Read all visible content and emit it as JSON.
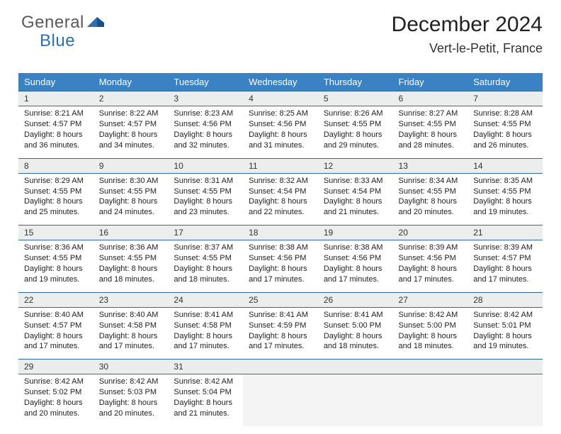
{
  "brand": {
    "part1": "General",
    "part2": "Blue"
  },
  "title": "December 2024",
  "location": "Vert-le-Petit, France",
  "colors": {
    "header_bg": "#3b82c4",
    "row_border": "#2f6aa5",
    "daynum_bg": "#eceded",
    "empty_bg": "#f4f4f4",
    "brand_blue": "#2e6fb0",
    "text": "#222222"
  },
  "typography": {
    "title_fontsize": 30,
    "location_fontsize": 18,
    "header_fontsize": 13,
    "cell_fontsize": 11
  },
  "day_headers": [
    "Sunday",
    "Monday",
    "Tuesday",
    "Wednesday",
    "Thursday",
    "Friday",
    "Saturday"
  ],
  "weeks": [
    [
      {
        "n": "1",
        "sunrise": "8:21 AM",
        "sunset": "4:57 PM",
        "dl": "8 hours and 36 minutes."
      },
      {
        "n": "2",
        "sunrise": "8:22 AM",
        "sunset": "4:57 PM",
        "dl": "8 hours and 34 minutes."
      },
      {
        "n": "3",
        "sunrise": "8:23 AM",
        "sunset": "4:56 PM",
        "dl": "8 hours and 32 minutes."
      },
      {
        "n": "4",
        "sunrise": "8:25 AM",
        "sunset": "4:56 PM",
        "dl": "8 hours and 31 minutes."
      },
      {
        "n": "5",
        "sunrise": "8:26 AM",
        "sunset": "4:55 PM",
        "dl": "8 hours and 29 minutes."
      },
      {
        "n": "6",
        "sunrise": "8:27 AM",
        "sunset": "4:55 PM",
        "dl": "8 hours and 28 minutes."
      },
      {
        "n": "7",
        "sunrise": "8:28 AM",
        "sunset": "4:55 PM",
        "dl": "8 hours and 26 minutes."
      }
    ],
    [
      {
        "n": "8",
        "sunrise": "8:29 AM",
        "sunset": "4:55 PM",
        "dl": "8 hours and 25 minutes."
      },
      {
        "n": "9",
        "sunrise": "8:30 AM",
        "sunset": "4:55 PM",
        "dl": "8 hours and 24 minutes."
      },
      {
        "n": "10",
        "sunrise": "8:31 AM",
        "sunset": "4:55 PM",
        "dl": "8 hours and 23 minutes."
      },
      {
        "n": "11",
        "sunrise": "8:32 AM",
        "sunset": "4:54 PM",
        "dl": "8 hours and 22 minutes."
      },
      {
        "n": "12",
        "sunrise": "8:33 AM",
        "sunset": "4:54 PM",
        "dl": "8 hours and 21 minutes."
      },
      {
        "n": "13",
        "sunrise": "8:34 AM",
        "sunset": "4:55 PM",
        "dl": "8 hours and 20 minutes."
      },
      {
        "n": "14",
        "sunrise": "8:35 AM",
        "sunset": "4:55 PM",
        "dl": "8 hours and 19 minutes."
      }
    ],
    [
      {
        "n": "15",
        "sunrise": "8:36 AM",
        "sunset": "4:55 PM",
        "dl": "8 hours and 19 minutes."
      },
      {
        "n": "16",
        "sunrise": "8:36 AM",
        "sunset": "4:55 PM",
        "dl": "8 hours and 18 minutes."
      },
      {
        "n": "17",
        "sunrise": "8:37 AM",
        "sunset": "4:55 PM",
        "dl": "8 hours and 18 minutes."
      },
      {
        "n": "18",
        "sunrise": "8:38 AM",
        "sunset": "4:56 PM",
        "dl": "8 hours and 17 minutes."
      },
      {
        "n": "19",
        "sunrise": "8:38 AM",
        "sunset": "4:56 PM",
        "dl": "8 hours and 17 minutes."
      },
      {
        "n": "20",
        "sunrise": "8:39 AM",
        "sunset": "4:56 PM",
        "dl": "8 hours and 17 minutes."
      },
      {
        "n": "21",
        "sunrise": "8:39 AM",
        "sunset": "4:57 PM",
        "dl": "8 hours and 17 minutes."
      }
    ],
    [
      {
        "n": "22",
        "sunrise": "8:40 AM",
        "sunset": "4:57 PM",
        "dl": "8 hours and 17 minutes."
      },
      {
        "n": "23",
        "sunrise": "8:40 AM",
        "sunset": "4:58 PM",
        "dl": "8 hours and 17 minutes."
      },
      {
        "n": "24",
        "sunrise": "8:41 AM",
        "sunset": "4:58 PM",
        "dl": "8 hours and 17 minutes."
      },
      {
        "n": "25",
        "sunrise": "8:41 AM",
        "sunset": "4:59 PM",
        "dl": "8 hours and 17 minutes."
      },
      {
        "n": "26",
        "sunrise": "8:41 AM",
        "sunset": "5:00 PM",
        "dl": "8 hours and 18 minutes."
      },
      {
        "n": "27",
        "sunrise": "8:42 AM",
        "sunset": "5:00 PM",
        "dl": "8 hours and 18 minutes."
      },
      {
        "n": "28",
        "sunrise": "8:42 AM",
        "sunset": "5:01 PM",
        "dl": "8 hours and 19 minutes."
      }
    ],
    [
      {
        "n": "29",
        "sunrise": "8:42 AM",
        "sunset": "5:02 PM",
        "dl": "8 hours and 20 minutes."
      },
      {
        "n": "30",
        "sunrise": "8:42 AM",
        "sunset": "5:03 PM",
        "dl": "8 hours and 20 minutes."
      },
      {
        "n": "31",
        "sunrise": "8:42 AM",
        "sunset": "5:04 PM",
        "dl": "8 hours and 21 minutes."
      },
      null,
      null,
      null,
      null
    ]
  ],
  "labels": {
    "sunrise": "Sunrise: ",
    "sunset": "Sunset: ",
    "daylight": "Daylight: "
  }
}
